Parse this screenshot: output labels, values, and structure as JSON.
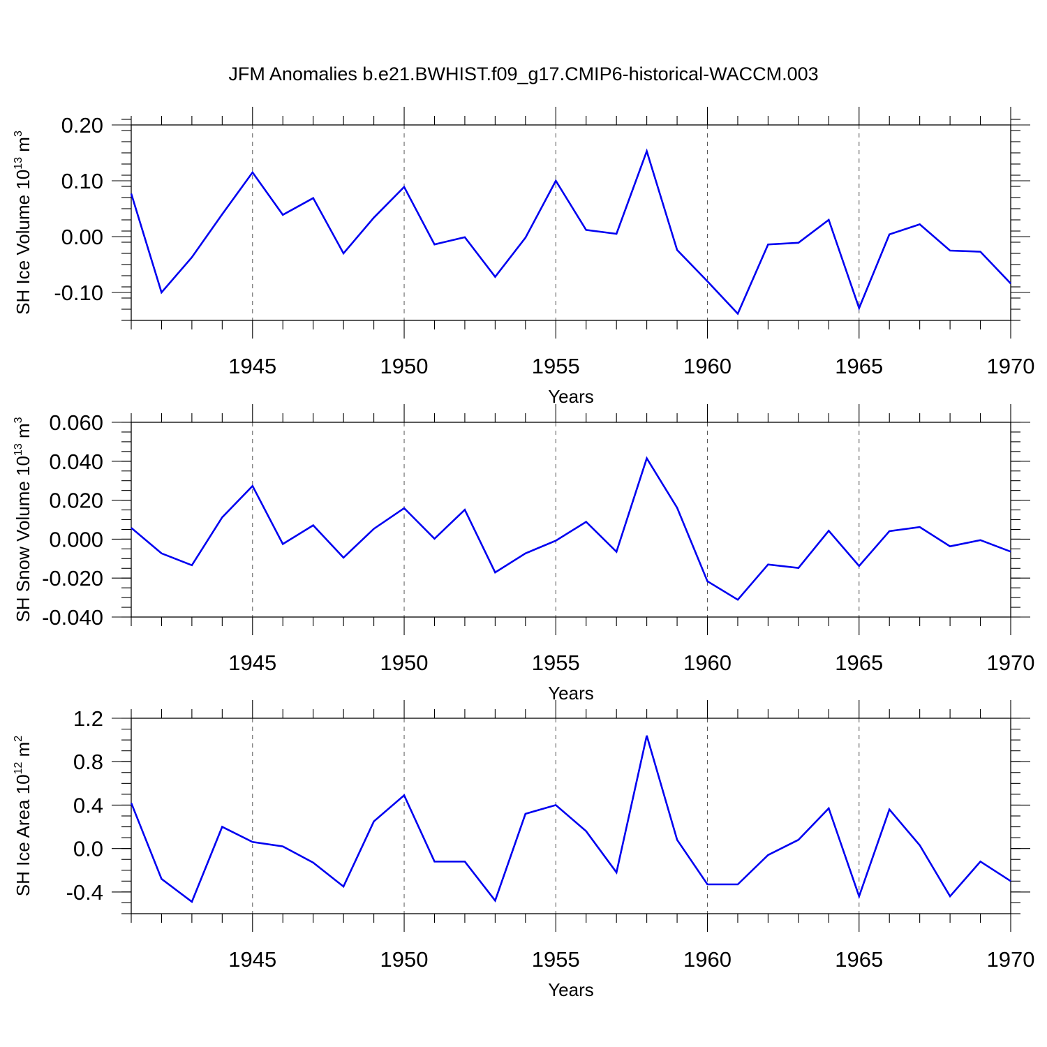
{
  "title": "JFM Anomalies b.e21.BWHIST.f09_g17.CMIP6-historical-WACCM.003",
  "colors": {
    "series": "#0000f0",
    "grid": "#555555"
  },
  "chart_data": [
    {
      "type": "line",
      "ylabel_base": "SH Ice Volume 10",
      "ylabel_exp": "13",
      "ylabel_unit": " m",
      "ylabel_unit_exp": "3",
      "xlabel": "Years",
      "xlim": [
        1941,
        1970
      ],
      "ylim": [
        -0.15,
        0.2
      ],
      "yticks": [
        -0.1,
        0.0,
        0.1,
        0.2
      ],
      "ytick_labels": [
        "-0.10",
        "0.00",
        "0.10",
        "0.20"
      ],
      "y_minor_step": 0.02,
      "xticks": [
        1945,
        1950,
        1955,
        1960,
        1965,
        1970
      ],
      "xtick_labels": [
        "1945",
        "1950",
        "1955",
        "1960",
        "1965",
        "1970"
      ],
      "grid_x": [
        1945,
        1950,
        1955,
        1960,
        1965
      ],
      "x": [
        1941,
        1942,
        1943,
        1944,
        1945,
        1946,
        1947,
        1948,
        1949,
        1950,
        1951,
        1952,
        1953,
        1954,
        1955,
        1956,
        1957,
        1958,
        1959,
        1960,
        1961,
        1962,
        1963,
        1964,
        1965,
        1966,
        1967,
        1968,
        1969,
        1970
      ],
      "series": [
        {
          "values": [
            0.077,
            -0.1,
            -0.037,
            0.04,
            0.115,
            0.039,
            0.069,
            -0.03,
            0.034,
            0.089,
            -0.014,
            -0.001,
            -0.072,
            -0.002,
            0.1,
            0.012,
            0.005,
            0.153,
            -0.024,
            -0.08,
            -0.138,
            -0.014,
            -0.011,
            0.03,
            -0.128,
            0.004,
            0.022,
            -0.025,
            -0.027,
            -0.084
          ]
        }
      ]
    },
    {
      "type": "line",
      "ylabel_base": "SH Snow Volume 10",
      "ylabel_exp": "13",
      "ylabel_unit": " m",
      "ylabel_unit_exp": "3",
      "xlabel": "Years",
      "xlim": [
        1941,
        1970
      ],
      "ylim": [
        -0.04,
        0.06
      ],
      "yticks": [
        -0.04,
        -0.02,
        0.0,
        0.02,
        0.04,
        0.06
      ],
      "ytick_labels": [
        "-0.040",
        "-0.020",
        "0.000",
        "0.020",
        "0.040",
        "0.060"
      ],
      "y_minor_step": 0.005,
      "xticks": [
        1945,
        1950,
        1955,
        1960,
        1965,
        1970
      ],
      "xtick_labels": [
        "1945",
        "1950",
        "1955",
        "1960",
        "1965",
        "1970"
      ],
      "grid_x": [
        1945,
        1950,
        1955,
        1960,
        1965
      ],
      "x": [
        1941,
        1942,
        1943,
        1944,
        1945,
        1946,
        1947,
        1948,
        1949,
        1950,
        1951,
        1952,
        1953,
        1954,
        1955,
        1956,
        1957,
        1958,
        1959,
        1960,
        1961,
        1962,
        1963,
        1964,
        1965,
        1966,
        1967,
        1968,
        1969,
        1970
      ],
      "series": [
        {
          "values": [
            0.0058,
            -0.0073,
            -0.0134,
            0.0112,
            0.0273,
            -0.0025,
            0.0071,
            -0.0095,
            0.0053,
            0.0159,
            0.0002,
            0.0151,
            -0.0171,
            -0.0073,
            -0.0008,
            0.0089,
            -0.0065,
            0.0415,
            0.0161,
            -0.0216,
            -0.0311,
            -0.013,
            -0.0148,
            0.0043,
            -0.0138,
            0.0041,
            0.0062,
            -0.0037,
            -0.0005,
            -0.0064
          ]
        }
      ]
    },
    {
      "type": "line",
      "ylabel_base": "SH Ice Area 10",
      "ylabel_exp": "12",
      "ylabel_unit": " m",
      "ylabel_unit_exp": "2",
      "xlabel": "Years",
      "xlim": [
        1941,
        1970
      ],
      "ylim": [
        -0.6,
        1.2
      ],
      "yticks": [
        -0.4,
        0.0,
        0.4,
        0.8,
        1.2
      ],
      "ytick_labels": [
        "-0.4",
        "0.0",
        "0.4",
        "0.8",
        "1.2"
      ],
      "y_minor_step": 0.1,
      "xticks": [
        1945,
        1950,
        1955,
        1960,
        1965,
        1970
      ],
      "xtick_labels": [
        "1945",
        "1950",
        "1955",
        "1960",
        "1965",
        "1970"
      ],
      "grid_x": [
        1945,
        1950,
        1955,
        1960,
        1965
      ],
      "x": [
        1941,
        1942,
        1943,
        1944,
        1945,
        1946,
        1947,
        1948,
        1949,
        1950,
        1951,
        1952,
        1953,
        1954,
        1955,
        1956,
        1957,
        1958,
        1959,
        1960,
        1961,
        1962,
        1963,
        1964,
        1965,
        1966,
        1967,
        1968,
        1969,
        1970
      ],
      "series": [
        {
          "values": [
            0.42,
            -0.28,
            -0.49,
            0.2,
            0.06,
            0.02,
            -0.13,
            -0.35,
            0.25,
            0.49,
            -0.12,
            -0.12,
            -0.48,
            0.32,
            0.4,
            0.16,
            -0.22,
            1.04,
            0.08,
            -0.33,
            -0.33,
            -0.06,
            0.08,
            0.37,
            -0.44,
            0.36,
            0.03,
            -0.44,
            -0.12,
            -0.3
          ]
        }
      ]
    }
  ]
}
